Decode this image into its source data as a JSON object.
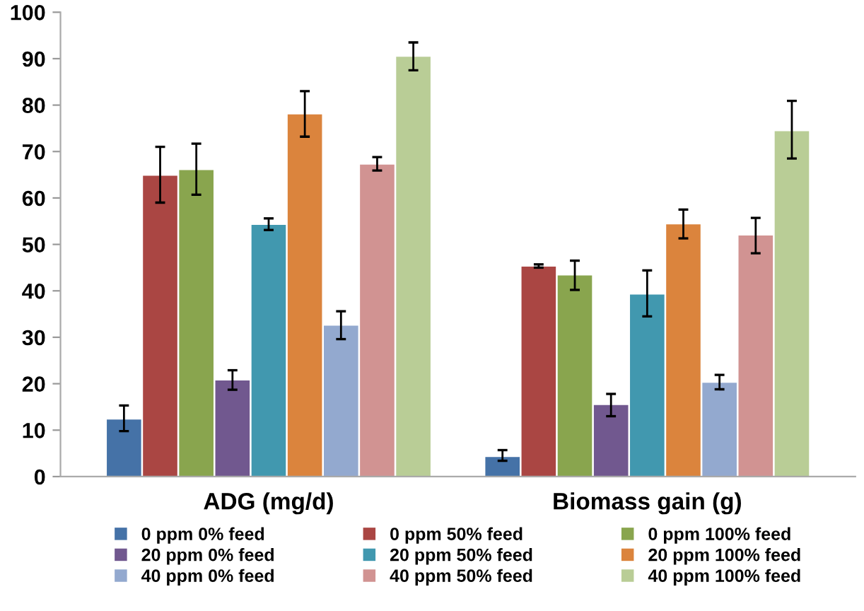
{
  "chart_data": {
    "type": "bar",
    "categories": [
      "ADG (mg/d)",
      "Biomass gain (g)"
    ],
    "ylim": [
      0,
      100
    ],
    "yticks": [
      0,
      10,
      20,
      30,
      40,
      50,
      60,
      70,
      80,
      90,
      100
    ],
    "grid": false,
    "legend": "bottom",
    "series": [
      {
        "name": "0 ppm 0% feed",
        "color": "#4572a7",
        "values": [
          12.3,
          4.2
        ],
        "errors": [
          [
            9.8,
            15.3
          ],
          [
            3.4,
            5.7
          ]
        ]
      },
      {
        "name": "0 ppm 50% feed",
        "color": "#aa4643",
        "values": [
          64.8,
          45.2
        ],
        "errors": [
          [
            59.0,
            71.0
          ],
          [
            45.0,
            45.7
          ]
        ]
      },
      {
        "name": "0 ppm 100% feed",
        "color": "#89a54e",
        "values": [
          66.0,
          43.3
        ],
        "errors": [
          [
            60.7,
            71.7
          ],
          [
            40.2,
            46.5
          ]
        ]
      },
      {
        "name": "20 ppm 0% feed",
        "color": "#71588f",
        "values": [
          20.7,
          15.4
        ],
        "errors": [
          [
            18.7,
            22.9
          ],
          [
            13.0,
            17.8
          ]
        ]
      },
      {
        "name": "20 ppm 50% feed",
        "color": "#4198af",
        "values": [
          54.2,
          39.2
        ],
        "errors": [
          [
            53.1,
            55.6
          ],
          [
            34.5,
            44.4
          ]
        ]
      },
      {
        "name": "20 ppm 100% feed",
        "color": "#db843d",
        "values": [
          78.0,
          54.3
        ],
        "errors": [
          [
            73.2,
            83.0
          ],
          [
            51.3,
            57.5
          ]
        ]
      },
      {
        "name": "40 ppm 0% feed",
        "color": "#93a9cf",
        "values": [
          32.5,
          20.2
        ],
        "errors": [
          [
            29.6,
            35.6
          ],
          [
            18.8,
            21.9
          ]
        ]
      },
      {
        "name": "40 ppm 50% feed",
        "color": "#d19392",
        "values": [
          67.2,
          51.9
        ],
        "errors": [
          [
            65.9,
            68.8
          ],
          [
            48.1,
            55.7
          ]
        ]
      },
      {
        "name": "40 ppm 100% feed",
        "color": "#b9cd96",
        "values": [
          90.4,
          74.4
        ],
        "errors": [
          [
            87.5,
            93.5
          ],
          [
            68.5,
            80.9
          ]
        ]
      }
    ]
  }
}
